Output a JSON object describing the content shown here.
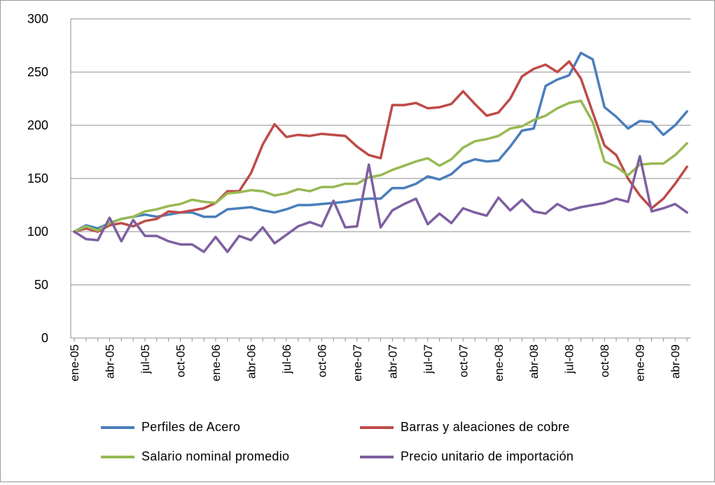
{
  "chart_data": {
    "type": "line",
    "title": "",
    "xlabel": "",
    "ylabel": "",
    "ylim": [
      0,
      300
    ],
    "yticks": [
      0,
      50,
      100,
      150,
      200,
      250,
      300
    ],
    "grid": true,
    "legend_position": "bottom",
    "x": [
      "ene-05",
      "feb-05",
      "mar-05",
      "abr-05",
      "may-05",
      "jun-05",
      "jul-05",
      "ago-05",
      "sep-05",
      "oct-05",
      "nov-05",
      "dic-05",
      "ene-06",
      "feb-06",
      "mar-06",
      "abr-06",
      "may-06",
      "jun-06",
      "jul-06",
      "ago-06",
      "sep-06",
      "oct-06",
      "nov-06",
      "dic-06",
      "ene-07",
      "feb-07",
      "mar-07",
      "abr-07",
      "may-07",
      "jun-07",
      "jul-07",
      "ago-07",
      "sep-07",
      "oct-07",
      "nov-07",
      "dic-07",
      "ene-08",
      "feb-08",
      "mar-08",
      "abr-08",
      "may-08",
      "jun-08",
      "jul-08",
      "ago-08",
      "sep-08",
      "oct-08",
      "nov-08",
      "dic-08",
      "ene-09",
      "feb-09",
      "mar-09",
      "abr-09",
      "may-09"
    ],
    "x_tick_labels": [
      "ene-05",
      "abr-05",
      "jul-05",
      "oct-05",
      "ene-06",
      "abr-06",
      "jul-06",
      "oct-06",
      "ene-07",
      "abr-07",
      "jul-07",
      "oct-07",
      "ene-08",
      "abr-08",
      "jul-08",
      "oct-08",
      "ene-09",
      "abr-09"
    ],
    "series": [
      {
        "name": "Perfiles de Acero",
        "color": "#4a7ebb",
        "values": [
          100,
          106,
          103,
          108,
          112,
          114,
          116,
          114,
          116,
          118,
          118,
          114,
          114,
          121,
          122,
          123,
          120,
          118,
          121,
          125,
          125,
          126,
          127,
          128,
          130,
          131,
          131,
          141,
          141,
          145,
          152,
          149,
          154,
          164,
          168,
          166,
          167,
          180,
          195,
          197,
          237,
          243,
          247,
          268,
          262,
          217,
          208,
          197,
          204,
          203,
          191,
          200,
          213
        ]
      },
      {
        "name": "Barras y aleaciones de cobre",
        "color": "#be4b48",
        "values": [
          100,
          103,
          100,
          106,
          108,
          105,
          110,
          112,
          119,
          118,
          120,
          122,
          127,
          138,
          138,
          155,
          182,
          201,
          189,
          191,
          190,
          192,
          191,
          190,
          180,
          172,
          169,
          219,
          219,
          221,
          216,
          217,
          220,
          232,
          220,
          209,
          212,
          225,
          246,
          253,
          257,
          250,
          260,
          244,
          212,
          181,
          172,
          150,
          134,
          122,
          131,
          145,
          161
        ]
      },
      {
        "name": "Salario nominal promedio",
        "color": "#98b954",
        "values": [
          100,
          105,
          101,
          108,
          112,
          114,
          119,
          121,
          124,
          126,
          130,
          128,
          127,
          136,
          137,
          139,
          138,
          134,
          136,
          140,
          138,
          142,
          142,
          145,
          145,
          151,
          153,
          158,
          162,
          166,
          169,
          162,
          168,
          179,
          185,
          187,
          190,
          197,
          199,
          205,
          209,
          216,
          221,
          223,
          203,
          166,
          161,
          153,
          163,
          164,
          164,
          172,
          183
        ]
      },
      {
        "name": "Precio unitario de importación",
        "color": "#7d60a0",
        "values": [
          100,
          93,
          92,
          113,
          91,
          111,
          96,
          96,
          91,
          88,
          88,
          81,
          95,
          81,
          96,
          92,
          104,
          89,
          97,
          105,
          109,
          105,
          129,
          104,
          105,
          163,
          104,
          120,
          126,
          131,
          107,
          117,
          108,
          122,
          118,
          115,
          132,
          120,
          130,
          119,
          117,
          126,
          120,
          123,
          125,
          127,
          131,
          128,
          171,
          119,
          122,
          126,
          118
        ]
      }
    ]
  }
}
